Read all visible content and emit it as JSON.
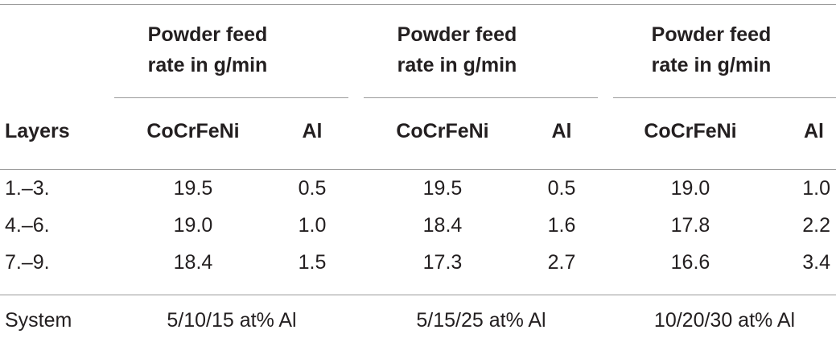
{
  "table": {
    "group_header": [
      "Powder feed",
      "rate in g/min"
    ],
    "col_headers": {
      "layers": "Layers",
      "cocrfeni": "CoCrFeNi",
      "al": "Al"
    },
    "rows": [
      {
        "layers": "1.–3.",
        "v": [
          "19.5",
          "0.5",
          "19.5",
          "0.5",
          "19.0",
          "1.0"
        ]
      },
      {
        "layers": "4.–6.",
        "v": [
          "19.0",
          "1.0",
          "18.4",
          "1.6",
          "17.8",
          "2.2"
        ]
      },
      {
        "layers": "7.–9.",
        "v": [
          "18.4",
          "1.5",
          "17.3",
          "2.7",
          "16.6",
          "3.4"
        ]
      }
    ],
    "system": {
      "label": "System",
      "values": [
        "5/10/15 at% Al",
        "5/15/25 at% Al",
        "10/20/30 at% Al"
      ]
    }
  }
}
